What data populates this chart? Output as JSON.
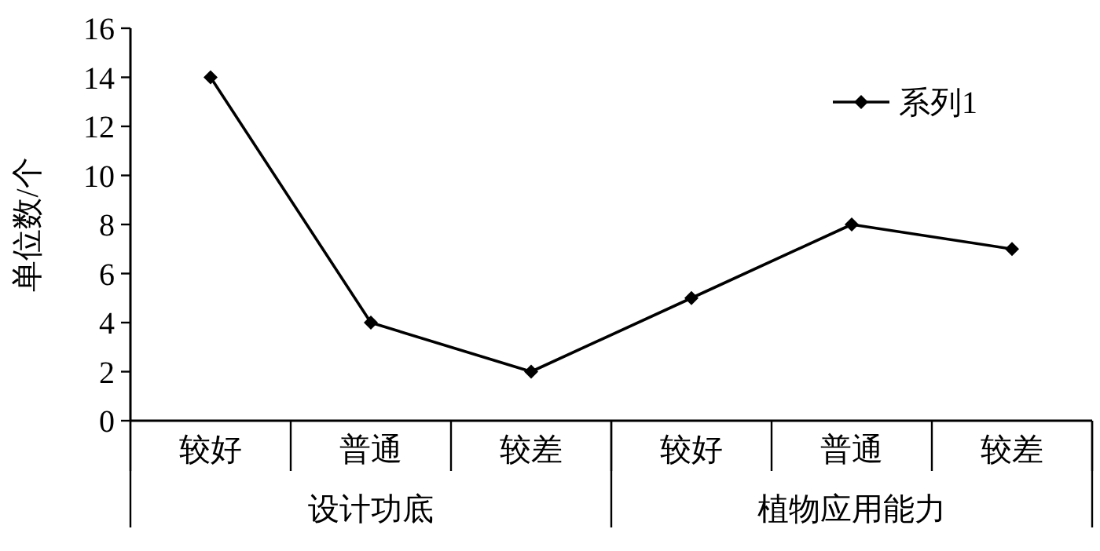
{
  "chart_data": {
    "type": "line",
    "ylabel": "单位数/个",
    "categories": [
      "较好",
      "普通",
      "较差",
      "较好",
      "普通",
      "较差"
    ],
    "series": [
      {
        "name": "系列1",
        "color": "#000000",
        "values": [
          14,
          4,
          2,
          5,
          8,
          7
        ]
      }
    ],
    "ylim": [
      0,
      16
    ],
    "yticks": [
      0,
      2,
      4,
      6,
      8,
      10,
      12,
      14,
      16
    ],
    "annotations": [
      "设计功底",
      "植物应用能力"
    ],
    "legend": "top right",
    "marker": "diamond",
    "line_style": "solid",
    "grid": false
  }
}
